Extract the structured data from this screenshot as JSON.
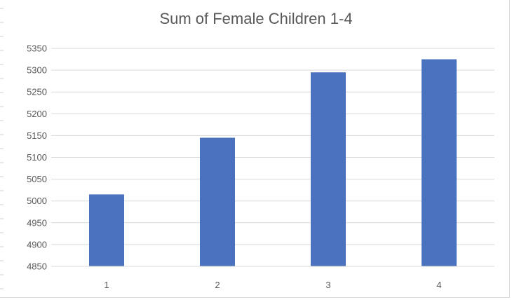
{
  "chart_data": {
    "type": "bar",
    "title": "Sum of Female Children 1-4",
    "categories": [
      "1",
      "2",
      "3",
      "4"
    ],
    "values": [
      5015,
      5145,
      5295,
      5325
    ],
    "xlabel": "",
    "ylabel": "",
    "ylim": [
      4850,
      5350
    ],
    "yticks": [
      4850,
      4900,
      4950,
      5000,
      5050,
      5100,
      5150,
      5200,
      5250,
      5300,
      5350
    ],
    "grid": true,
    "legend": "none",
    "bar_color": "#4a72be"
  }
}
